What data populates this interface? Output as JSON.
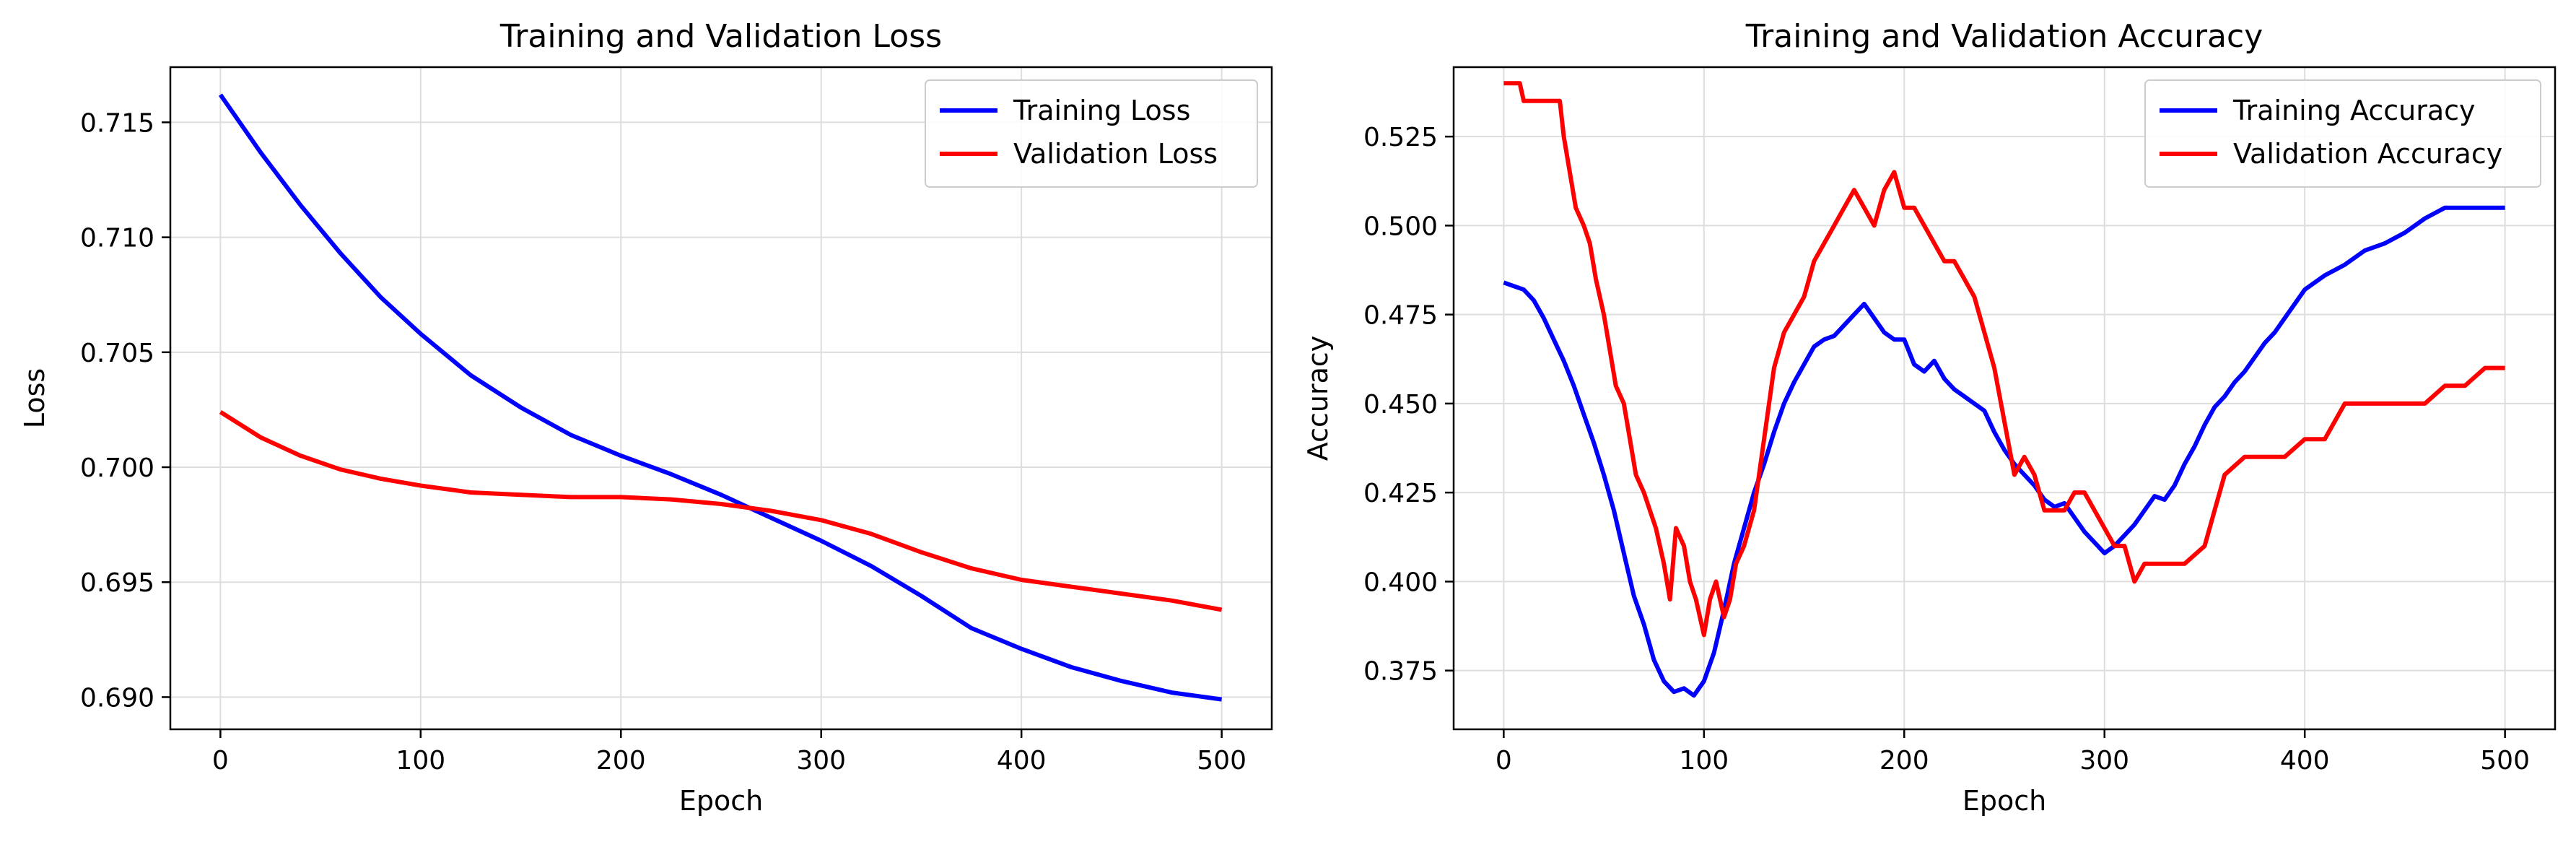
{
  "chart_data": [
    {
      "type": "line",
      "title": "Training and Validation Loss",
      "xlabel": "Epoch",
      "ylabel": "Loss",
      "xlim": [
        -25,
        525
      ],
      "ylim": [
        0.6886,
        0.7174
      ],
      "xticks": [
        0,
        100,
        200,
        300,
        400,
        500
      ],
      "yticks": [
        0.69,
        0.695,
        0.7,
        0.705,
        0.71,
        0.715
      ],
      "grid": true,
      "legend_position": "upper-right",
      "series": [
        {
          "name": "Training Loss",
          "color": "#0000ff",
          "x": [
            0,
            20,
            40,
            60,
            80,
            100,
            125,
            150,
            175,
            200,
            225,
            250,
            275,
            300,
            325,
            350,
            375,
            400,
            425,
            450,
            475,
            500
          ],
          "y": [
            0.7162,
            0.7137,
            0.7114,
            0.7093,
            0.7074,
            0.7058,
            0.704,
            0.7026,
            0.7014,
            0.7005,
            0.6997,
            0.6988,
            0.6978,
            0.6968,
            0.6957,
            0.6944,
            0.693,
            0.6921,
            0.6913,
            0.6907,
            0.6902,
            0.6899
          ]
        },
        {
          "name": "Validation Loss",
          "color": "#ff0000",
          "x": [
            0,
            20,
            40,
            60,
            80,
            100,
            125,
            150,
            175,
            200,
            225,
            250,
            275,
            300,
            325,
            350,
            375,
            400,
            425,
            450,
            475,
            500
          ],
          "y": [
            0.7024,
            0.7013,
            0.7005,
            0.6999,
            0.6995,
            0.6992,
            0.6989,
            0.6988,
            0.6987,
            0.6987,
            0.6986,
            0.6984,
            0.6981,
            0.6977,
            0.6971,
            0.6963,
            0.6956,
            0.6951,
            0.6948,
            0.6945,
            0.6942,
            0.6938
          ]
        }
      ]
    },
    {
      "type": "line",
      "title": "Training and Validation Accuracy",
      "xlabel": "Epoch",
      "ylabel": "Accuracy",
      "xlim": [
        -25,
        525
      ],
      "ylim": [
        0.3585,
        0.5445
      ],
      "xticks": [
        0,
        100,
        200,
        300,
        400,
        500
      ],
      "yticks": [
        0.375,
        0.4,
        0.425,
        0.45,
        0.475,
        0.5,
        0.525
      ],
      "grid": true,
      "legend_position": "upper-right",
      "series": [
        {
          "name": "Training Accuracy",
          "color": "#0000ff",
          "x": [
            0,
            5,
            10,
            15,
            20,
            25,
            30,
            35,
            40,
            45,
            50,
            55,
            60,
            65,
            70,
            75,
            80,
            85,
            90,
            95,
            100,
            105,
            110,
            115,
            120,
            125,
            130,
            135,
            140,
            145,
            150,
            155,
            160,
            165,
            170,
            175,
            180,
            185,
            190,
            195,
            200,
            205,
            210,
            215,
            220,
            225,
            230,
            235,
            240,
            245,
            250,
            255,
            260,
            265,
            270,
            275,
            280,
            285,
            290,
            295,
            300,
            305,
            310,
            315,
            320,
            325,
            330,
            335,
            340,
            345,
            350,
            355,
            360,
            365,
            370,
            375,
            380,
            385,
            390,
            395,
            400,
            410,
            420,
            430,
            440,
            450,
            460,
            470,
            480,
            490,
            500
          ],
          "y": [
            0.484,
            0.483,
            0.482,
            0.479,
            0.474,
            0.468,
            0.462,
            0.455,
            0.447,
            0.439,
            0.43,
            0.42,
            0.408,
            0.396,
            0.388,
            0.378,
            0.372,
            0.369,
            0.37,
            0.368,
            0.372,
            0.38,
            0.392,
            0.405,
            0.415,
            0.425,
            0.433,
            0.442,
            0.45,
            0.456,
            0.461,
            0.466,
            0.468,
            0.469,
            0.472,
            0.475,
            0.478,
            0.474,
            0.47,
            0.468,
            0.468,
            0.461,
            0.459,
            0.462,
            0.457,
            0.454,
            0.452,
            0.45,
            0.448,
            0.442,
            0.437,
            0.433,
            0.43,
            0.427,
            0.423,
            0.421,
            0.422,
            0.418,
            0.414,
            0.411,
            0.408,
            0.41,
            0.413,
            0.416,
            0.42,
            0.424,
            0.423,
            0.427,
            0.433,
            0.438,
            0.444,
            0.449,
            0.452,
            0.456,
            0.459,
            0.463,
            0.467,
            0.47,
            0.474,
            0.478,
            0.482,
            0.486,
            0.489,
            0.493,
            0.495,
            0.498,
            0.502,
            0.505,
            0.505,
            0.505,
            0.505
          ]
        },
        {
          "name": "Validation Accuracy",
          "color": "#ff0000",
          "x": [
            0,
            8,
            10,
            20,
            28,
            30,
            33,
            36,
            40,
            43,
            46,
            50,
            53,
            56,
            60,
            63,
            66,
            70,
            73,
            76,
            80,
            83,
            86,
            90,
            93,
            96,
            100,
            103,
            106,
            110,
            113,
            116,
            120,
            125,
            130,
            135,
            140,
            145,
            150,
            155,
            160,
            165,
            170,
            175,
            180,
            185,
            190,
            195,
            200,
            205,
            210,
            215,
            220,
            225,
            230,
            235,
            240,
            245,
            250,
            255,
            260,
            265,
            270,
            275,
            280,
            285,
            290,
            295,
            300,
            305,
            310,
            315,
            320,
            325,
            330,
            340,
            350,
            355,
            360,
            370,
            380,
            390,
            400,
            410,
            420,
            430,
            440,
            450,
            460,
            470,
            480,
            490,
            500
          ],
          "y": [
            0.54,
            0.54,
            0.535,
            0.535,
            0.535,
            0.525,
            0.515,
            0.505,
            0.5,
            0.495,
            0.485,
            0.475,
            0.465,
            0.455,
            0.45,
            0.44,
            0.43,
            0.425,
            0.42,
            0.415,
            0.405,
            0.395,
            0.415,
            0.41,
            0.4,
            0.395,
            0.385,
            0.395,
            0.4,
            0.39,
            0.395,
            0.405,
            0.41,
            0.42,
            0.44,
            0.46,
            0.47,
            0.475,
            0.48,
            0.49,
            0.495,
            0.5,
            0.505,
            0.51,
            0.505,
            0.5,
            0.51,
            0.515,
            0.505,
            0.505,
            0.5,
            0.495,
            0.49,
            0.49,
            0.485,
            0.48,
            0.47,
            0.46,
            0.445,
            0.43,
            0.435,
            0.43,
            0.42,
            0.42,
            0.42,
            0.425,
            0.425,
            0.42,
            0.415,
            0.41,
            0.41,
            0.4,
            0.405,
            0.405,
            0.405,
            0.405,
            0.41,
            0.42,
            0.43,
            0.435,
            0.435,
            0.435,
            0.44,
            0.44,
            0.45,
            0.45,
            0.45,
            0.45,
            0.45,
            0.455,
            0.455,
            0.46,
            0.46
          ]
        }
      ]
    }
  ]
}
